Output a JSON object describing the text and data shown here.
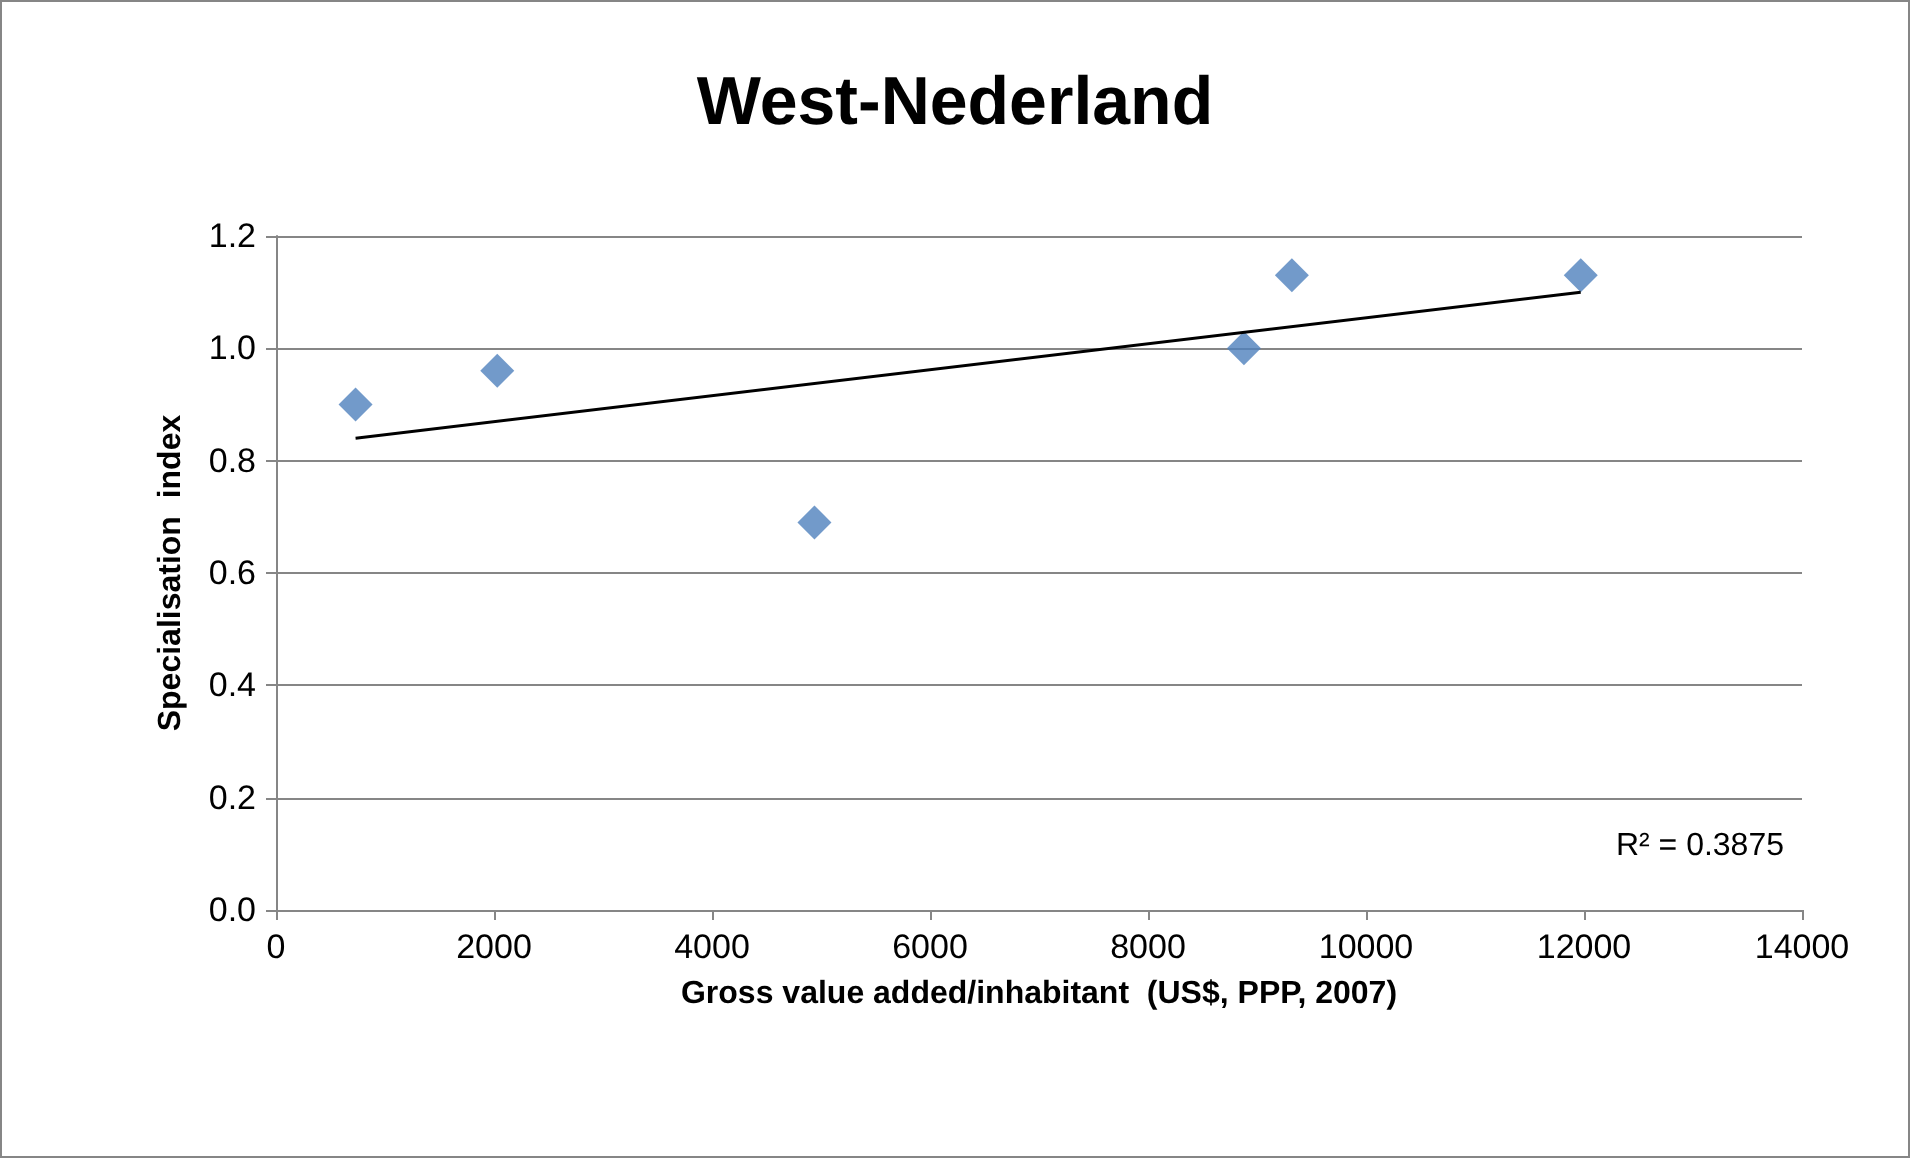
{
  "chart_data": {
    "type": "scatter",
    "title": "West-Nederland",
    "xlabel": "Gross value added/inhabitant  (US$, PPP, 2007)",
    "ylabel": "Specialisation  index",
    "series": [
      {
        "color": "#4f81bd",
        "marker": "diamond",
        "x": [
          730,
          2030,
          4940,
          8880,
          9320,
          11970
        ],
        "values": [
          0.9,
          0.96,
          0.69,
          1.0,
          1.13,
          1.13
        ]
      },
      {
        "type": "line",
        "color": "#000000",
        "marker": "none",
        "line_style": "solid",
        "x": [
          730,
          11970
        ],
        "values": [
          0.84,
          1.1
        ]
      }
    ],
    "annotations": [
      "R² = 0.3875"
    ],
    "xlim": [
      0,
      14000
    ],
    "xticks": [
      0,
      2000,
      4000,
      6000,
      8000,
      10000,
      12000,
      14000
    ],
    "ylim": [
      0,
      1.2
    ],
    "yticks": [
      {
        "value": 0,
        "label": "0.0"
      },
      {
        "value": 0.2,
        "label": "0.2"
      },
      {
        "value": 0.4,
        "label": "0.4"
      },
      {
        "value": 0.6,
        "label": "0.6"
      },
      {
        "value": 0.8,
        "label": "0.8"
      },
      {
        "value": 1,
        "label": "1.0"
      },
      {
        "value": 1.2,
        "label": "1.2"
      }
    ],
    "grid": "y"
  }
}
